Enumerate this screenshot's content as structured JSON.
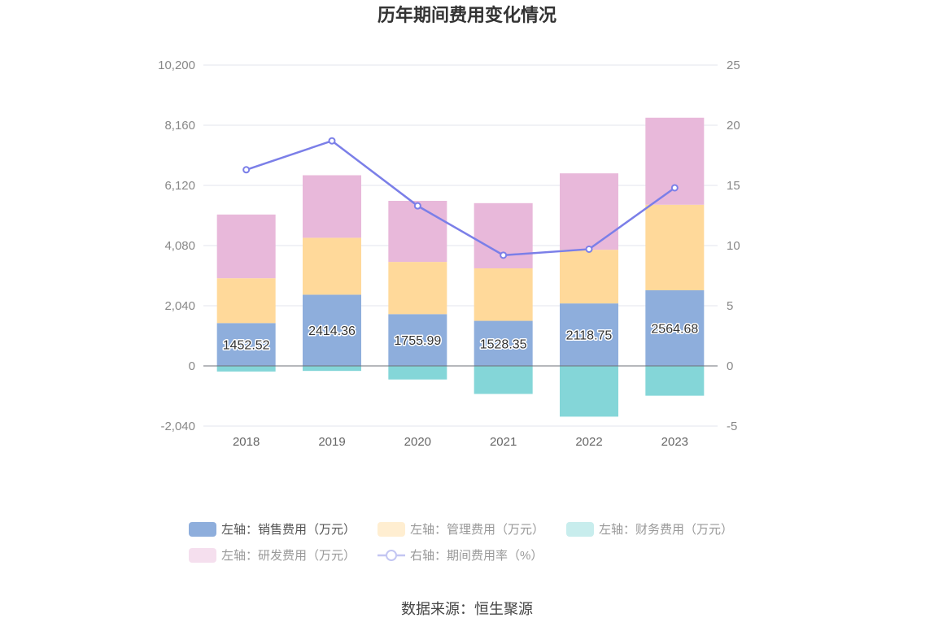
{
  "chart_data": {
    "type": "bar",
    "title": "历年期间费用变化情况",
    "source": "数据来源：恒生聚源",
    "categories": [
      "2018",
      "2019",
      "2020",
      "2021",
      "2022",
      "2023"
    ],
    "left_axis": {
      "ylim": [
        -2040,
        10200
      ],
      "ticks": [
        "-2,040",
        "0",
        "2,040",
        "4,080",
        "6,120",
        "8,160",
        "10,200"
      ],
      "tick_values": [
        -2040,
        0,
        2040,
        4080,
        6120,
        8160,
        10200
      ]
    },
    "right_axis": {
      "ylim": [
        -5,
        25
      ],
      "ticks": [
        "-5",
        "0",
        "5",
        "10",
        "15",
        "20",
        "25"
      ],
      "tick_values": [
        -5,
        0,
        5,
        10,
        15,
        20,
        25
      ]
    },
    "series": [
      {
        "name": "左轴：销售费用（万元）",
        "type": "bar",
        "stack": "total",
        "color": "#8eaedc",
        "values": [
          1452.52,
          2414.36,
          1755.99,
          1528.35,
          2118.75,
          2564.68
        ],
        "labels": [
          "1452.52",
          "2414.36",
          "1755.99",
          "1528.35",
          "2118.75",
          "2564.68"
        ]
      },
      {
        "name": "左轴：管理费用（万元）",
        "type": "bar",
        "stack": "total",
        "color": "#ffd99a",
        "values": [
          1520,
          1930,
          1770,
          1780,
          1820,
          2900
        ]
      },
      {
        "name": "左轴：财务费用（万元）",
        "type": "bar",
        "stack": "total",
        "color": "#84d6d8",
        "values": [
          -190,
          -170,
          -460,
          -950,
          -1720,
          -1010
        ]
      },
      {
        "name": "左轴：研发费用（万元）",
        "type": "bar",
        "stack": "total",
        "color": "#e8b8da",
        "values": [
          2160,
          2120,
          2070,
          2210,
          2590,
          2950
        ]
      },
      {
        "name": "右轴：期间费用率（%）",
        "type": "line",
        "axis": "right",
        "color": "#7b7fe8",
        "values": [
          16.3,
          18.7,
          13.3,
          9.2,
          9.7,
          14.8
        ]
      }
    ],
    "legend_position": "bottom"
  }
}
